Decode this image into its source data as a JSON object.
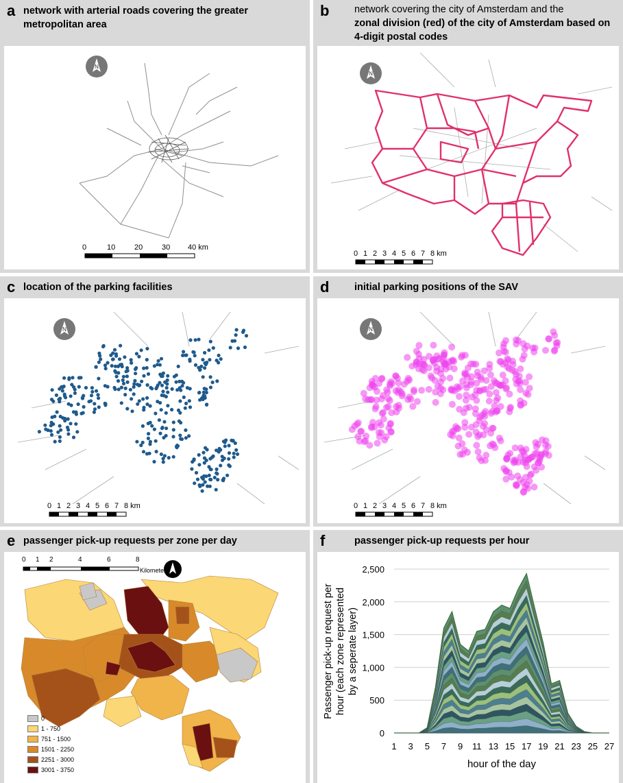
{
  "panels": {
    "a": {
      "letter": "a",
      "title": "network with arterial roads covering the greater metropolitan area",
      "scalebar": [
        "0",
        "10",
        "20",
        "30",
        "40 km"
      ]
    },
    "b": {
      "letter": "b",
      "title_line1": "network covering the city of Amsterdam and the",
      "title_rest": "zonal division (red) of the city of Amsterdam based on 4-digit postal codes",
      "scalebar": [
        "0",
        "1",
        "2",
        "3",
        "4",
        "5",
        "6",
        "7",
        "8 km"
      ]
    },
    "c": {
      "letter": "c",
      "title": "location of the parking facilities",
      "scalebar": [
        "0",
        "1",
        "2",
        "3",
        "4",
        "5",
        "6",
        "7",
        "8 km"
      ]
    },
    "d": {
      "letter": "d",
      "title": "initial parking positions of the SAV",
      "scalebar": [
        "0",
        "1",
        "2",
        "3",
        "4",
        "5",
        "6",
        "7",
        "8 km"
      ]
    },
    "e": {
      "letter": "e",
      "title": "passenger pick-up requests per zone per day",
      "scalebar": [
        "0",
        "1",
        "2",
        "4",
        "6",
        "8"
      ],
      "scalebar_unit": "Kilometers",
      "legend": [
        {
          "label": "0",
          "color": "#c8c8c8"
        },
        {
          "label": "1 - 750",
          "color": "#fbd775"
        },
        {
          "label": "751 - 1500",
          "color": "#f0b44a"
        },
        {
          "label": "1501 - 2250",
          "color": "#d88a2a"
        },
        {
          "label": "2251 - 3000",
          "color": "#a5521a"
        },
        {
          "label": "3001 - 3750",
          "color": "#6b1010"
        }
      ]
    },
    "f": {
      "letter": "f",
      "title": "passenger pick-up requests per hour"
    }
  },
  "north_label": "N",
  "colors": {
    "zone_outline": "#e0306a",
    "parking": "#1f5a8c",
    "sav": "#ee44ee",
    "road": "#9a9a9a"
  },
  "chart_data": {
    "type": "area",
    "ylabel_lines": [
      "Passenger pick-up request per",
      "hour (each zone represented",
      "by a seperate layer)"
    ],
    "xlabel": "hour of the day",
    "x_ticks": [
      "1",
      "3",
      "5",
      "7",
      "9",
      "11",
      "13",
      "15",
      "17",
      "19",
      "21",
      "23",
      "25",
      "27"
    ],
    "y_ticks": [
      "0",
      "500",
      "1,000",
      "1,500",
      "2,000",
      "2,500"
    ],
    "ylim": [
      0,
      2500
    ],
    "x": [
      1,
      2,
      3,
      4,
      5,
      6,
      7,
      8,
      9,
      10,
      11,
      12,
      13,
      14,
      15,
      16,
      17,
      18,
      19,
      20,
      21,
      22,
      23,
      24,
      25,
      26,
      27
    ],
    "total": [
      0,
      0,
      0,
      0,
      80,
      700,
      1600,
      1850,
      1350,
      1250,
      1550,
      1580,
      1850,
      1950,
      1900,
      2200,
      2430,
      1900,
      1380,
      750,
      800,
      300,
      100,
      20,
      0,
      0,
      0
    ]
  }
}
